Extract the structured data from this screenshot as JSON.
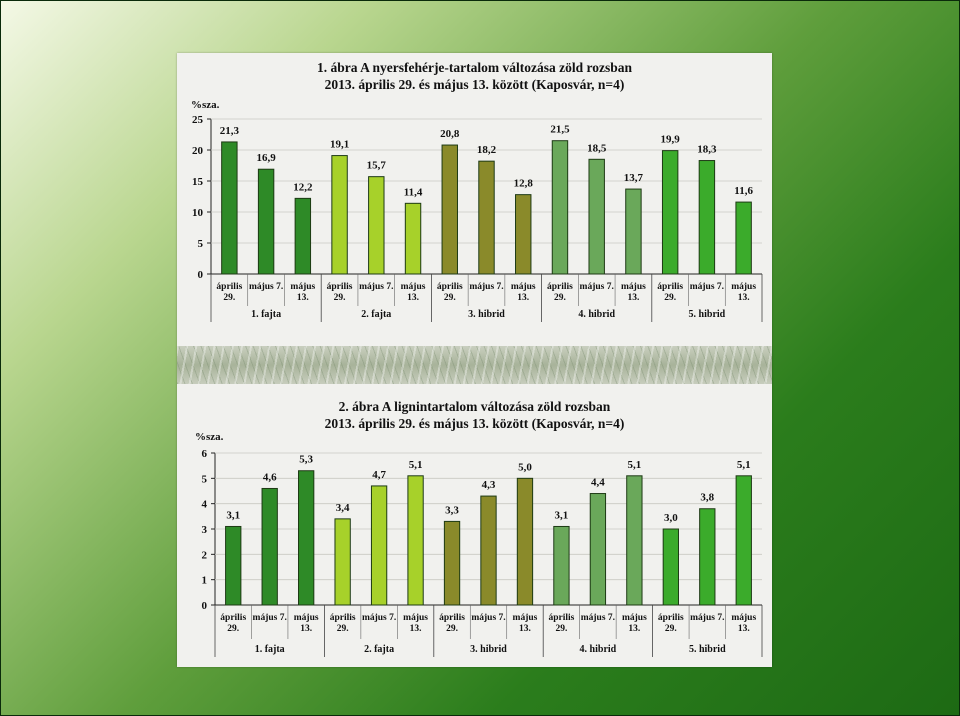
{
  "chart_data": [
    {
      "type": "bar",
      "title_line1": "1. ábra A nyersfehérje-tartalom változása zöld rozsban",
      "title_line2": "2013. április 29. és május 13. között (Kaposvár, n=4)",
      "ylabel": "%sza.",
      "ylim": [
        0,
        25
      ],
      "yticks": [
        0,
        5,
        10,
        15,
        20,
        25
      ],
      "grid": true,
      "groups": [
        {
          "name": "1. fajta",
          "categories": [
            [
              "április",
              "29."
            ],
            [
              "május 7."
            ],
            [
              "május",
              "13."
            ]
          ],
          "values": [
            21.3,
            16.9,
            12.2
          ],
          "labels": [
            "21,3",
            "16,9",
            "12,2"
          ],
          "color": "#2e8a27"
        },
        {
          "name": "2. fajta",
          "categories": [
            [
              "április",
              "29."
            ],
            [
              "május 7."
            ],
            [
              "május",
              "13."
            ]
          ],
          "values": [
            19.1,
            15.7,
            11.4
          ],
          "labels": [
            "19,1",
            "15,7",
            "11,4"
          ],
          "color": "#a7d12a"
        },
        {
          "name": "3. hibrid",
          "categories": [
            [
              "április",
              "29."
            ],
            [
              "május 7."
            ],
            [
              "május",
              "13."
            ]
          ],
          "values": [
            20.8,
            18.2,
            12.8
          ],
          "labels": [
            "20,8",
            "18,2",
            "12,8"
          ],
          "color": "#8a8a2a"
        },
        {
          "name": "4. hibrid",
          "categories": [
            [
              "április",
              "29."
            ],
            [
              "május 7."
            ],
            [
              "május",
              "13."
            ]
          ],
          "values": [
            21.5,
            18.5,
            13.7
          ],
          "labels": [
            "21,5",
            "18,5",
            "13,7"
          ],
          "color": "#6aa85a"
        },
        {
          "name": "5. hibrid",
          "categories": [
            [
              "április",
              "29."
            ],
            [
              "május 7."
            ],
            [
              "május",
              "13."
            ]
          ],
          "values": [
            19.9,
            18.3,
            11.6
          ],
          "labels": [
            "19,9",
            "18,3",
            "11,6"
          ],
          "color": "#3bab2b"
        }
      ]
    },
    {
      "type": "bar",
      "title_line1": "2. ábra A lignintartalom változása zöld rozsban",
      "title_line2": "2013. április 29. és május 13. között (Kaposvár, n=4)",
      "ylabel": "%sza.",
      "ylim": [
        0,
        6
      ],
      "yticks": [
        0,
        1,
        2,
        3,
        4,
        5,
        6
      ],
      "grid": true,
      "groups": [
        {
          "name": "1. fajta",
          "categories": [
            [
              "április",
              "29."
            ],
            [
              "május 7."
            ],
            [
              "május",
              "13."
            ]
          ],
          "values": [
            3.1,
            4.6,
            5.3
          ],
          "labels": [
            "3,1",
            "4,6",
            "5,3"
          ],
          "color": "#2e8a27"
        },
        {
          "name": "2. fajta",
          "categories": [
            [
              "április",
              "29."
            ],
            [
              "május 7."
            ],
            [
              "május",
              "13."
            ]
          ],
          "values": [
            3.4,
            4.7,
            5.1
          ],
          "labels": [
            "3,4",
            "4,7",
            "5,1"
          ],
          "color": "#a7d12a"
        },
        {
          "name": "3. hibrid",
          "categories": [
            [
              "április",
              "29."
            ],
            [
              "május 7."
            ],
            [
              "május",
              "13."
            ]
          ],
          "values": [
            3.3,
            4.3,
            5.0
          ],
          "labels": [
            "3,3",
            "4,3",
            "5,0"
          ],
          "color": "#8a8a2a"
        },
        {
          "name": "4. hibrid",
          "categories": [
            [
              "április",
              "29."
            ],
            [
              "május 7."
            ],
            [
              "május",
              "13."
            ]
          ],
          "values": [
            3.1,
            4.4,
            5.1
          ],
          "labels": [
            "3,1",
            "4,4",
            "5,1"
          ],
          "color": "#6aa85a"
        },
        {
          "name": "5. hibrid",
          "categories": [
            [
              "április",
              "29."
            ],
            [
              "május 7."
            ],
            [
              "május",
              "13."
            ]
          ],
          "values": [
            3.0,
            3.8,
            5.1
          ],
          "labels": [
            "3,0",
            "3,8",
            "5,1"
          ],
          "color": "#3bab2b"
        }
      ]
    }
  ]
}
